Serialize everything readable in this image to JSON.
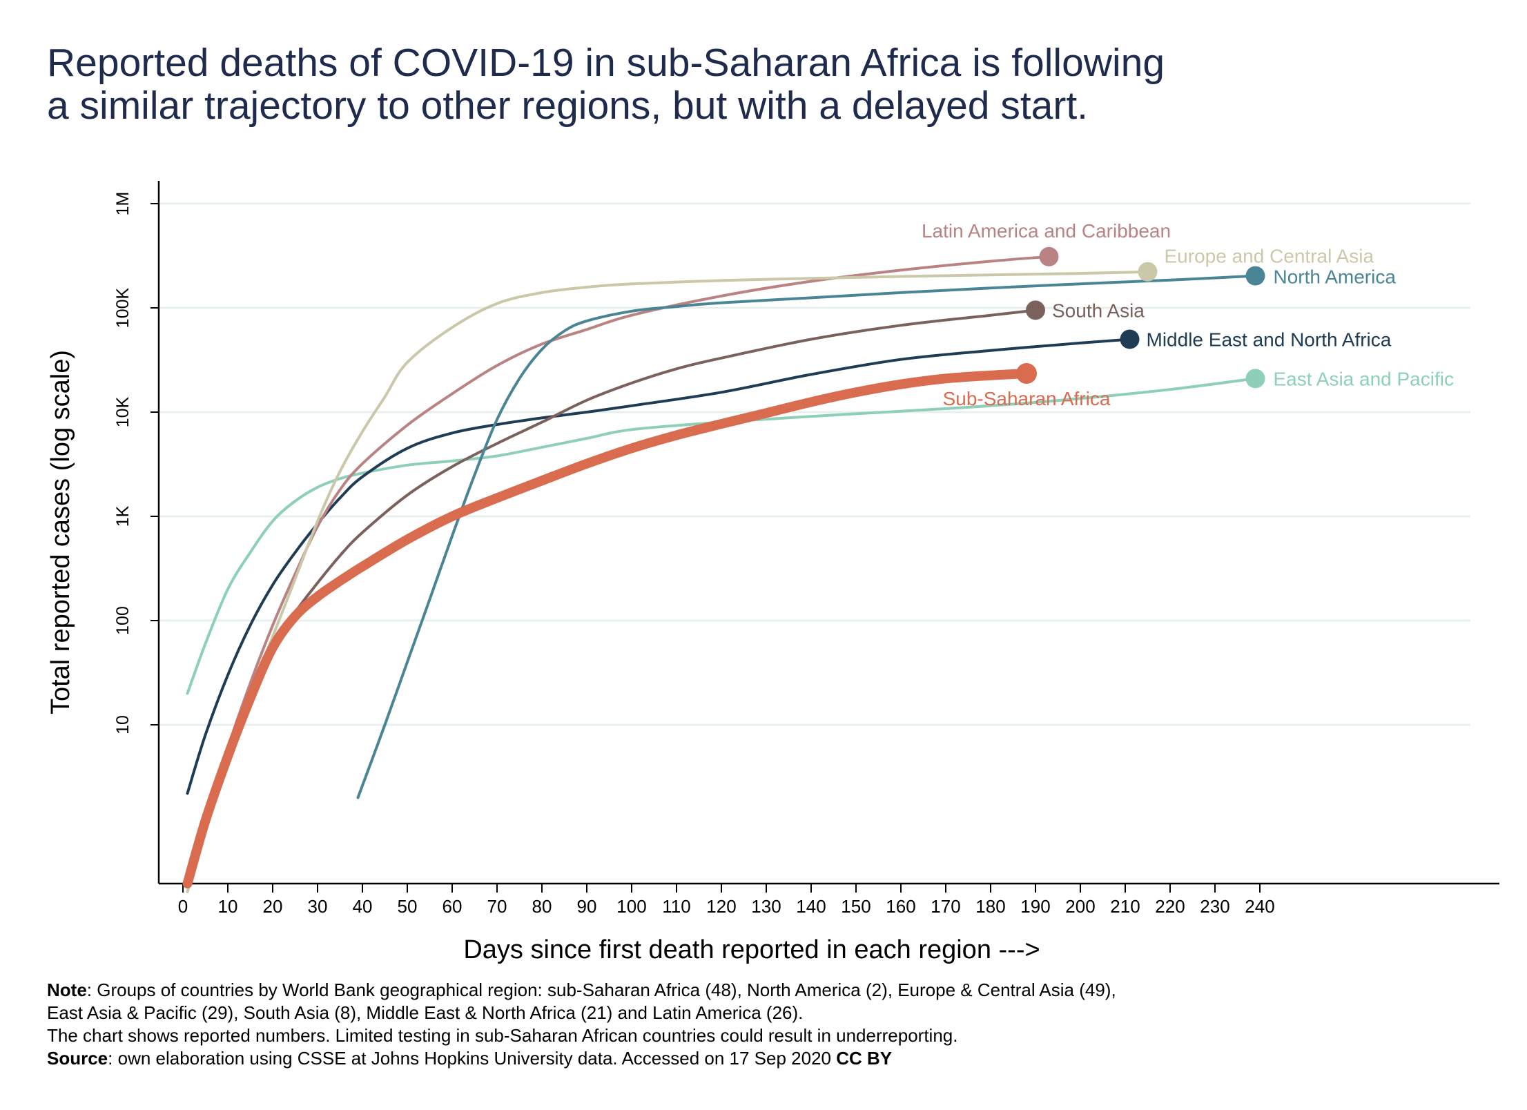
{
  "title": {
    "line1": "Reported deaths of COVID-19 in sub-Saharan Africa is following",
    "line2": "a similar trajectory to other regions, but with a delayed start."
  },
  "notes": {
    "note_label": "Note",
    "note_line1": ": Groups of countries by World Bank geographical region: sub-Saharan Africa (48), North America (2), Europe & Central Asia (49),",
    "note_line2": "East Asia & Pacific (29), South Asia (8), Middle East & North Africa (21) and Latin America (26).",
    "note_line3": "The chart shows reported numbers. Limited testing in sub-Saharan African countries could result in underreporting.",
    "source_label": "Source",
    "source_text": ": own elaboration using CSSE at Johns Hopkins University data.  Accessed on 17 Sep 2020 ",
    "license": "CC BY"
  },
  "chart_data": {
    "type": "line",
    "xlabel": "Days since first death reported in each region --->",
    "ylabel": "Total reported cases (log scale)",
    "y_scale": "log",
    "x_ticks": [
      0,
      10,
      20,
      30,
      40,
      50,
      60,
      70,
      80,
      90,
      100,
      110,
      120,
      130,
      140,
      150,
      160,
      170,
      180,
      190,
      200,
      210,
      220,
      230,
      240
    ],
    "y_ticks": [
      {
        "value": 10,
        "label": "10"
      },
      {
        "value": 100,
        "label": "100"
      },
      {
        "value": 1000,
        "label": "1K"
      },
      {
        "value": 10000,
        "label": "10K"
      },
      {
        "value": 100000,
        "label": "100K"
      },
      {
        "value": 1000000,
        "label": "1M"
      }
    ],
    "xlim": [
      -5,
      295
    ],
    "ylim": [
      0.15,
      1500000
    ],
    "grid": true,
    "series": [
      {
        "name": "East Asia and Pacific",
        "color": "#8dcfb8",
        "width": "thin",
        "x": [
          1,
          5,
          10,
          15,
          20,
          25,
          30,
          35,
          40,
          50,
          60,
          70,
          80,
          90,
          100,
          120,
          140,
          160,
          180,
          200,
          220,
          239
        ],
        "y": [
          20,
          60,
          200,
          450,
          900,
          1400,
          1900,
          2300,
          2600,
          3100,
          3400,
          3800,
          4600,
          5600,
          6800,
          8000,
          9100,
          10200,
          11500,
          13500,
          16500,
          21000
        ]
      },
      {
        "name": "Middle East and North Africa",
        "color": "#1f3c55",
        "width": "thin",
        "x": [
          1,
          5,
          10,
          15,
          20,
          25,
          30,
          35,
          40,
          50,
          60,
          70,
          80,
          90,
          100,
          120,
          140,
          160,
          180,
          200,
          211
        ],
        "y": [
          2.2,
          8,
          30,
          90,
          220,
          450,
          850,
          1500,
          2400,
          4500,
          6300,
          7600,
          8800,
          10000,
          11500,
          15500,
          23000,
          32000,
          39000,
          46000,
          50000
        ]
      },
      {
        "name": "South Asia",
        "color": "#7a615c",
        "width": "thin",
        "x": [
          1,
          5,
          10,
          15,
          20,
          25,
          30,
          35,
          40,
          50,
          60,
          70,
          80,
          90,
          100,
          110,
          120,
          140,
          160,
          180,
          190
        ],
        "y": [
          0.4,
          1.5,
          6,
          20,
          55,
          120,
          230,
          420,
          700,
          1600,
          3000,
          5000,
          8000,
          13000,
          19000,
          26000,
          33000,
          50000,
          68000,
          85000,
          95000
        ]
      },
      {
        "name": "Latin America and Caribbean",
        "color": "#ba8383",
        "width": "thin",
        "x": [
          1,
          5,
          10,
          15,
          20,
          25,
          30,
          35,
          40,
          50,
          60,
          70,
          80,
          90,
          100,
          120,
          140,
          160,
          180,
          193
        ],
        "y": [
          0.3,
          1.2,
          6,
          25,
          90,
          280,
          800,
          1800,
          3200,
          7500,
          15000,
          28000,
          45000,
          62000,
          85000,
          130000,
          180000,
          230000,
          280000,
          310000
        ]
      },
      {
        "name": "Europe and Central Asia",
        "color": "#cbc8a9",
        "width": "thin",
        "x": [
          1,
          5,
          10,
          15,
          20,
          25,
          30,
          35,
          40,
          45,
          50,
          60,
          70,
          80,
          90,
          100,
          120,
          140,
          160,
          180,
          200,
          215
        ],
        "y": [
          0.25,
          1,
          5,
          20,
          70,
          250,
          900,
          2700,
          6500,
          14000,
          30000,
          65000,
          110000,
          140000,
          158000,
          170000,
          183000,
          192000,
          200000,
          207000,
          214000,
          222000
        ]
      },
      {
        "name": "North America",
        "color": "#4a8595",
        "width": "thin",
        "x": [
          39,
          45,
          50,
          55,
          60,
          65,
          70,
          75,
          80,
          85,
          90,
          100,
          110,
          120,
          140,
          160,
          180,
          200,
          220,
          239
        ],
        "y": [
          2,
          10,
          40,
          160,
          650,
          2500,
          8500,
          21000,
          40000,
          60000,
          75000,
          93000,
          103000,
          112000,
          125000,
          140000,
          155000,
          170000,
          185000,
          203000
        ]
      },
      {
        "name": "Sub-Saharan Africa",
        "color": "#d96b4e",
        "width": "thick",
        "x": [
          1,
          5,
          10,
          15,
          20,
          25,
          30,
          35,
          40,
          50,
          60,
          70,
          80,
          90,
          100,
          110,
          120,
          130,
          140,
          150,
          160,
          170,
          180,
          188
        ],
        "y": [
          0.3,
          1.2,
          5,
          18,
          55,
          110,
          170,
          240,
          330,
          600,
          1000,
          1500,
          2200,
          3200,
          4500,
          6000,
          7700,
          9800,
          12500,
          15500,
          18500,
          21000,
          22500,
          23500
        ]
      }
    ]
  }
}
